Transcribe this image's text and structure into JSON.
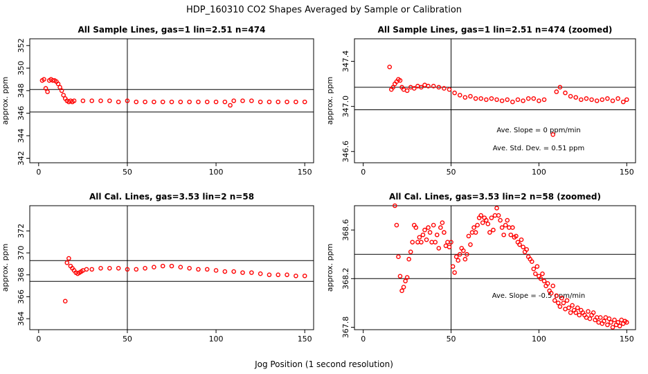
{
  "figure": {
    "title": "HDP_160310  CO2 Shapes Averaged by Sample or Calibration",
    "xlabel": "Jog Position (1 second resolution)",
    "marker_color": "#ff0000"
  },
  "chart_data": [
    {
      "type": "scatter",
      "title": "All Sample Lines, gas=1 lin=2.51 n=474",
      "ylabel": "approx. ppm",
      "xlim": [
        -5,
        155
      ],
      "ylim": [
        341.6,
        352.6
      ],
      "xticks": [
        "0",
        "50",
        "100",
        "150"
      ],
      "yticks": [
        "342",
        "344",
        "346",
        "348",
        "350",
        "352"
      ],
      "vline": 50,
      "hlines": [
        348.1,
        346.1
      ],
      "annotations": [],
      "x": [
        2,
        3,
        4,
        5,
        6,
        7,
        8,
        9,
        10,
        11,
        12,
        13,
        14,
        15,
        16,
        17,
        18,
        19,
        20,
        25,
        30,
        35,
        40,
        45,
        50,
        55,
        60,
        65,
        70,
        75,
        80,
        85,
        90,
        95,
        100,
        105,
        108,
        110,
        115,
        120,
        125,
        130,
        135,
        140,
        145,
        150
      ],
      "y": [
        348.9,
        349.0,
        348.2,
        347.9,
        348.9,
        349.0,
        348.9,
        348.9,
        348.8,
        348.6,
        348.3,
        348.0,
        347.6,
        347.3,
        347.1,
        347.0,
        347.1,
        347.0,
        347.1,
        347.1,
        347.1,
        347.1,
        347.1,
        347.0,
        347.1,
        347.0,
        347.0,
        347.0,
        347.0,
        347.0,
        347.0,
        347.0,
        347.0,
        347.0,
        347.0,
        347.0,
        346.7,
        347.1,
        347.1,
        347.1,
        347.0,
        347.0,
        347.0,
        347.0,
        347.0,
        347.0
      ]
    },
    {
      "type": "scatter",
      "title": "All Sample Lines, gas=1 lin=2.51 n=474 (zoomed)",
      "ylabel": "approx. ppm",
      "xlim": [
        -5,
        155
      ],
      "ylim": [
        346.5,
        347.6
      ],
      "xticks": [
        "0",
        "50",
        "100",
        "150"
      ],
      "yticks": [
        "346.6",
        "347.0",
        "347.4"
      ],
      "vline": 50,
      "hlines": [
        347.17,
        346.97
      ],
      "annotations": [
        "Ave. Slope =  0  ppm/min",
        "Ave. Std. Dev. =  0.51  ppm"
      ],
      "x": [
        15,
        16,
        17,
        18,
        19,
        20,
        21,
        22,
        23,
        25,
        27,
        29,
        31,
        33,
        35,
        37,
        40,
        43,
        46,
        49,
        52,
        55,
        58,
        61,
        64,
        67,
        70,
        73,
        76,
        79,
        82,
        85,
        88,
        91,
        94,
        97,
        100,
        103,
        108,
        110,
        112,
        115,
        118,
        121,
        124,
        127,
        130,
        133,
        136,
        139,
        142,
        145,
        148,
        150
      ],
      "y": [
        347.35,
        347.15,
        347.17,
        347.2,
        347.22,
        347.24,
        347.23,
        347.17,
        347.15,
        347.14,
        347.17,
        347.16,
        347.18,
        347.17,
        347.19,
        347.18,
        347.18,
        347.17,
        347.16,
        347.15,
        347.12,
        347.1,
        347.08,
        347.09,
        347.07,
        347.07,
        347.06,
        347.07,
        347.06,
        347.05,
        347.06,
        347.04,
        347.06,
        347.05,
        347.07,
        347.07,
        347.05,
        347.06,
        346.75,
        347.13,
        347.17,
        347.12,
        347.09,
        347.08,
        347.06,
        347.07,
        347.06,
        347.05,
        347.06,
        347.07,
        347.05,
        347.07,
        347.04,
        347.06
      ]
    },
    {
      "type": "scatter",
      "title": "All Cal. Lines, gas=3.53 lin=2 n=58",
      "ylabel": "approx. ppm",
      "xlim": [
        -5,
        155
      ],
      "ylim": [
        363.0,
        374.3
      ],
      "xticks": [
        "0",
        "50",
        "100",
        "150"
      ],
      "yticks": [
        "364",
        "366",
        "368",
        "370",
        "372"
      ],
      "vline": 50,
      "hlines": [
        369.3,
        367.4
      ],
      "annotations": [],
      "x": [
        15,
        16,
        17,
        18,
        19,
        20,
        21,
        22,
        23,
        24,
        25,
        27,
        30,
        35,
        40,
        45,
        50,
        55,
        60,
        65,
        70,
        75,
        80,
        85,
        90,
        95,
        100,
        105,
        110,
        115,
        120,
        125,
        130,
        135,
        140,
        145,
        150
      ],
      "y": [
        365.6,
        369.1,
        369.5,
        368.8,
        368.6,
        368.4,
        368.2,
        368.1,
        368.2,
        368.3,
        368.4,
        368.5,
        368.5,
        368.6,
        368.6,
        368.6,
        368.5,
        368.5,
        368.6,
        368.7,
        368.8,
        368.8,
        368.7,
        368.6,
        368.5,
        368.5,
        368.4,
        368.3,
        368.3,
        368.2,
        368.2,
        368.1,
        368.0,
        368.0,
        368.0,
        367.9,
        367.9
      ]
    },
    {
      "type": "scatter",
      "title": "All Cal. Lines, gas=3.53 lin=2 n=58 (zoomed)",
      "ylabel": "approx. ppm",
      "xlim": [
        -5,
        155
      ],
      "ylim": [
        367.78,
        368.8
      ],
      "xticks": [
        "0",
        "50",
        "100",
        "150"
      ],
      "yticks": [
        "367.8",
        "368.2",
        "368.6"
      ],
      "vline": 50,
      "hlines": [
        368.4,
        368.2
      ],
      "annotations": [
        "Ave. Slope =  -0.5  ppm/min"
      ],
      "x": [
        18,
        19,
        20,
        21,
        22,
        23,
        24,
        25,
        26,
        27,
        28,
        29,
        30,
        31,
        32,
        33,
        34,
        35,
        36,
        37,
        38,
        39,
        40,
        41,
        42,
        43,
        44,
        45,
        46,
        47,
        48,
        49,
        50,
        51,
        52,
        53,
        54,
        55,
        56,
        57,
        58,
        59,
        60,
        61,
        62,
        63,
        64,
        65,
        66,
        67,
        68,
        69,
        70,
        71,
        72,
        73,
        74,
        75,
        76,
        77,
        78,
        79,
        80,
        81,
        82,
        83,
        84,
        85,
        86,
        87,
        88,
        89,
        90,
        91,
        92,
        93,
        94,
        95,
        96,
        97,
        98,
        99,
        100,
        101,
        102,
        103,
        104,
        105,
        106,
        107,
        108,
        109,
        110,
        111,
        112,
        113,
        114,
        115,
        116,
        117,
        118,
        119,
        120,
        121,
        122,
        123,
        124,
        125,
        126,
        127,
        128,
        129,
        130,
        131,
        132,
        133,
        134,
        135,
        136,
        137,
        138,
        139,
        140,
        141,
        142,
        143,
        144,
        145,
        146,
        147,
        148,
        149,
        150
      ],
      "y": [
        368.8,
        368.64,
        368.38,
        368.22,
        368.1,
        368.13,
        368.18,
        368.21,
        368.36,
        368.42,
        368.5,
        368.64,
        368.62,
        368.5,
        368.54,
        368.5,
        368.56,
        368.6,
        368.52,
        368.62,
        368.58,
        368.5,
        368.64,
        368.5,
        368.56,
        368.45,
        368.62,
        368.66,
        368.58,
        368.47,
        368.5,
        368.46,
        368.5,
        368.3,
        368.25,
        368.38,
        368.35,
        368.4,
        368.45,
        368.43,
        368.36,
        368.4,
        368.55,
        368.48,
        368.58,
        368.62,
        368.58,
        368.64,
        368.7,
        368.72,
        368.66,
        368.7,
        368.68,
        368.65,
        368.58,
        368.7,
        368.6,
        368.72,
        368.78,
        368.72,
        368.68,
        368.62,
        368.56,
        368.64,
        368.68,
        368.62,
        368.56,
        368.62,
        368.54,
        368.55,
        368.5,
        368.48,
        368.52,
        368.46,
        368.42,
        368.44,
        368.38,
        368.36,
        368.34,
        368.28,
        368.24,
        368.3,
        368.22,
        368.2,
        368.24,
        368.18,
        368.14,
        368.16,
        368.1,
        368.08,
        368.14,
        368.02,
        368.06,
        368.0,
        367.97,
        368.04,
        368.0,
        367.95,
        368.02,
        367.96,
        367.92,
        367.98,
        367.94,
        367.92,
        367.96,
        367.9,
        367.94,
        367.92,
        367.9,
        367.88,
        367.93,
        367.87,
        367.9,
        367.92,
        367.86,
        367.88,
        367.84,
        367.88,
        367.83,
        367.85,
        367.88,
        367.82,
        367.87,
        367.84,
        367.8,
        367.86,
        367.82,
        367.84,
        367.81,
        367.86,
        367.83,
        367.85,
        367.84
      ]
    }
  ]
}
